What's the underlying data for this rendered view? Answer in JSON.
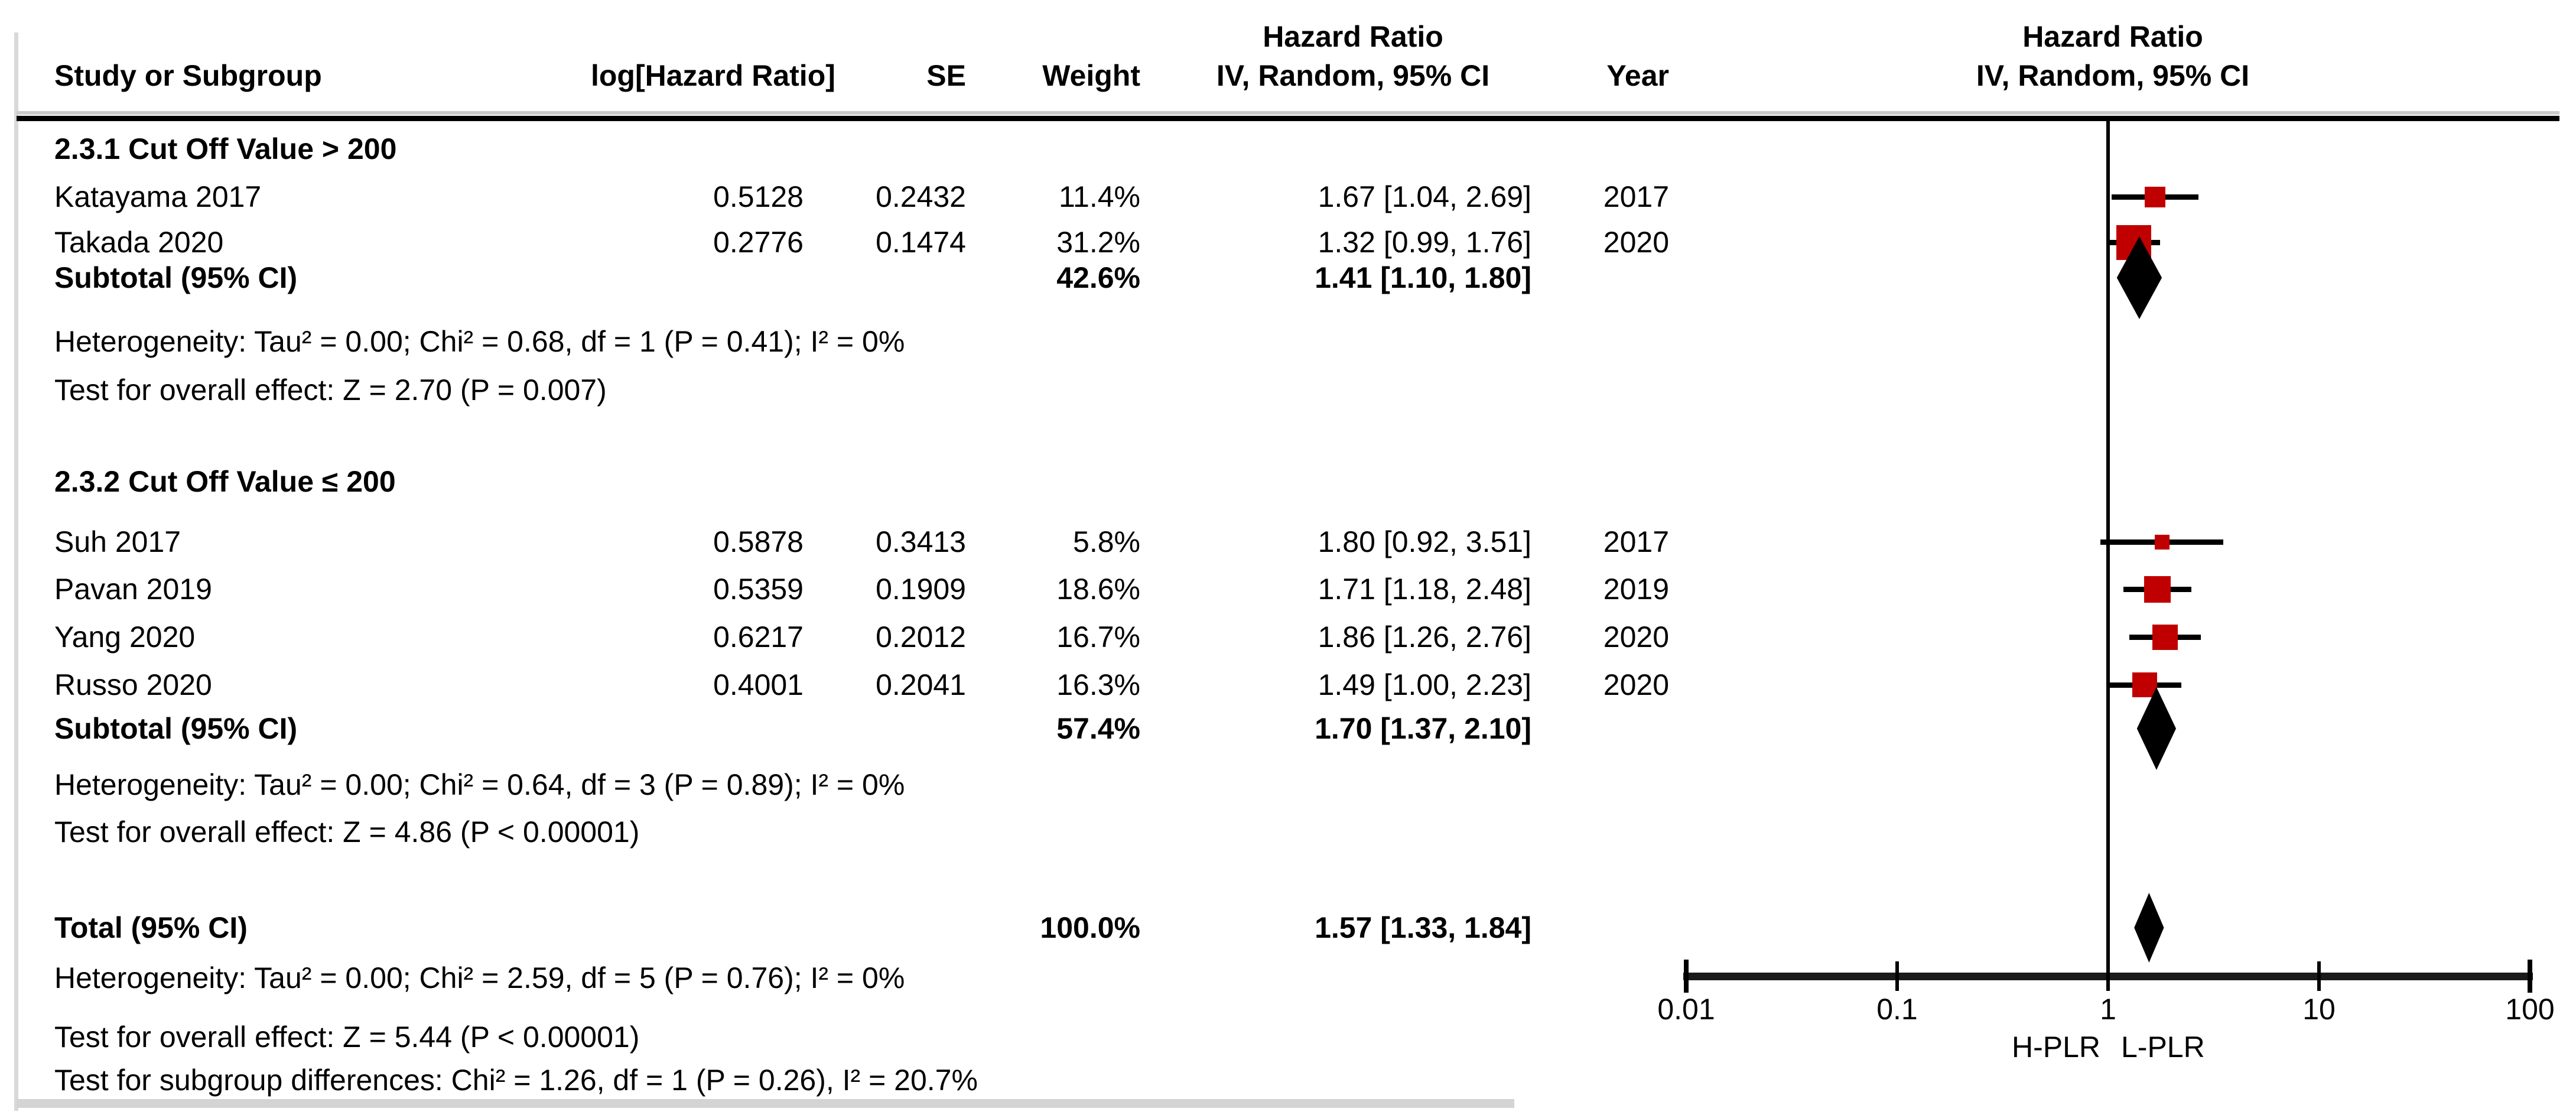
{
  "table": {
    "header": {
      "col_study": "Study or Subgroup",
      "col_loghr": "log[Hazard Ratio]",
      "col_se": "SE",
      "col_weight": "Weight",
      "col_hr_top": "Hazard Ratio",
      "col_hr_bottom": "IV, Random, 95% CI",
      "col_year": "Year",
      "plot_hr_top": "Hazard Ratio",
      "plot_hr_bottom": "IV, Random, 95% CI"
    },
    "groups": [
      {
        "title": "2.3.1 Cut Off Value > 200",
        "studies": [
          {
            "name": "Katayama 2017",
            "loghr": "0.5128",
            "se": "0.2432",
            "weight": "11.4%",
            "ci": "1.67 [1.04, 2.69]",
            "year": "2017"
          },
          {
            "name": "Takada 2020",
            "loghr": "0.2776",
            "se": "0.1474",
            "weight": "31.2%",
            "ci": "1.32 [0.99, 1.76]",
            "year": "2020"
          }
        ],
        "subtotal": {
          "label": "Subtotal (95% CI)",
          "weight": "42.6%",
          "ci": "1.41 [1.10, 1.80]"
        },
        "heterogeneity": "Heterogeneity: Tau² = 0.00; Chi² = 0.68, df = 1 (P = 0.41); I² = 0%",
        "overall_effect": "Test for overall effect: Z = 2.70 (P = 0.007)"
      },
      {
        "title": "2.3.2 Cut Off Value ≤ 200",
        "studies": [
          {
            "name": "Suh 2017",
            "loghr": "0.5878",
            "se": "0.3413",
            "weight": "5.8%",
            "ci": "1.80 [0.92, 3.51]",
            "year": "2017"
          },
          {
            "name": "Pavan 2019",
            "loghr": "0.5359",
            "se": "0.1909",
            "weight": "18.6%",
            "ci": "1.71 [1.18, 2.48]",
            "year": "2019"
          },
          {
            "name": "Yang 2020",
            "loghr": "0.6217",
            "se": "0.2012",
            "weight": "16.7%",
            "ci": "1.86 [1.26, 2.76]",
            "year": "2020"
          },
          {
            "name": "Russo 2020",
            "loghr": "0.4001",
            "se": "0.2041",
            "weight": "16.3%",
            "ci": "1.49 [1.00, 2.23]",
            "year": "2020"
          }
        ],
        "subtotal": {
          "label": "Subtotal (95% CI)",
          "weight": "57.4%",
          "ci": "1.70 [1.37, 2.10]"
        },
        "heterogeneity": "Heterogeneity: Tau² = 0.00; Chi² = 0.64, df = 3 (P = 0.89); I² = 0%",
        "overall_effect": "Test for overall effect: Z = 4.86 (P < 0.00001)"
      }
    ],
    "total": {
      "label": "Total (95% CI)",
      "weight": "100.0%",
      "ci": "1.57 [1.33, 1.84]"
    },
    "total_heterogeneity": "Heterogeneity: Tau² = 0.00; Chi² = 2.59, df = 5 (P = 0.76); I² = 0%",
    "total_overall_effect": "Test for overall effect: Z = 5.44 (P < 0.00001)",
    "subgroup_differences": "Test for subgroup differences: Chi² = 1.26, df = 1 (P = 0.26), I² = 20.7%"
  },
  "chart_data": {
    "type": "forest",
    "effect_measure": "Hazard Ratio",
    "model": "IV, Random, 95% CI",
    "x_axis": {
      "scale": "log",
      "range": [
        0.01,
        100
      ],
      "ticks": [
        "0.01",
        "0.1",
        "1",
        "10",
        "100"
      ],
      "label_left": "H-PLR",
      "label_right": "L-PLR"
    },
    "series": [
      {
        "group": "2.3.1 Cut Off Value > 200",
        "points": [
          {
            "study": "Katayama 2017",
            "hr": 1.67,
            "lo": 1.04,
            "hi": 2.69,
            "weight": 11.4,
            "year": 2017
          },
          {
            "study": "Takada 2020",
            "hr": 1.32,
            "lo": 0.99,
            "hi": 1.76,
            "weight": 31.2,
            "year": 2020
          }
        ],
        "subtotal": {
          "hr": 1.41,
          "lo": 1.1,
          "hi": 1.8,
          "weight": 42.6
        }
      },
      {
        "group": "2.3.2 Cut Off Value ≤ 200",
        "points": [
          {
            "study": "Suh 2017",
            "hr": 1.8,
            "lo": 0.92,
            "hi": 3.51,
            "weight": 5.8,
            "year": 2017
          },
          {
            "study": "Pavan 2019",
            "hr": 1.71,
            "lo": 1.18,
            "hi": 2.48,
            "weight": 18.6,
            "year": 2019
          },
          {
            "study": "Yang 2020",
            "hr": 1.86,
            "lo": 1.26,
            "hi": 2.76,
            "weight": 16.7,
            "year": 2020
          },
          {
            "study": "Russo 2020",
            "hr": 1.49,
            "lo": 1.0,
            "hi": 2.23,
            "weight": 16.3,
            "year": 2020
          }
        ],
        "subtotal": {
          "hr": 1.7,
          "lo": 1.37,
          "hi": 2.1,
          "weight": 57.4
        }
      }
    ],
    "total": {
      "hr": 1.57,
      "lo": 1.33,
      "hi": 1.84,
      "weight": 100.0
    },
    "colors": {
      "square": "#c00000",
      "diamond": "#000000",
      "line": "#000000",
      "accent_rule": "#cbcbcb"
    }
  }
}
